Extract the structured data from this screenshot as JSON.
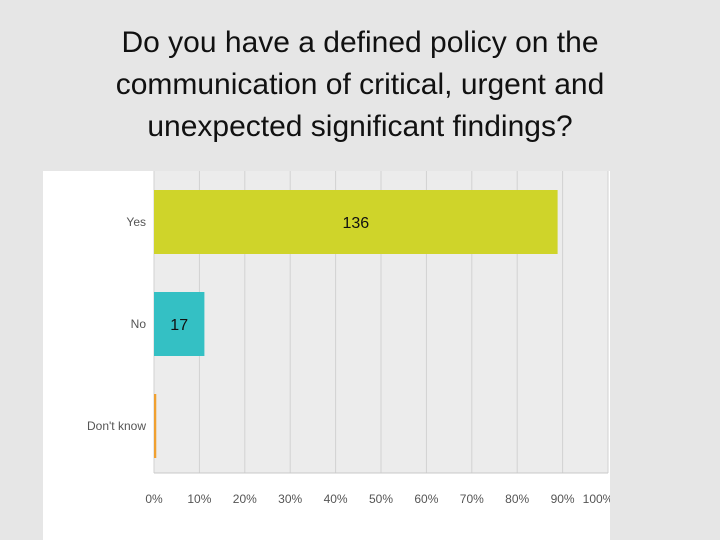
{
  "slide": {
    "title_lines": [
      "Do you have a defined policy on the",
      "communication of critical, urgent and",
      "unexpected significant findings?"
    ]
  },
  "chart_data": {
    "type": "bar",
    "orientation": "horizontal",
    "categories": [
      "Yes",
      "No",
      "Don't know"
    ],
    "values_percent": [
      88.9,
      11.1,
      0.5
    ],
    "data_labels": [
      "136",
      "17",
      ""
    ],
    "xlim": [
      0,
      100
    ],
    "xticks": [
      "0%",
      "10%",
      "20%",
      "30%",
      "40%",
      "50%",
      "60%",
      "70%",
      "80%",
      "90%",
      "100%"
    ],
    "colors": [
      "#cfd42a",
      "#34c0c4",
      "#f0a030"
    ],
    "grid": true,
    "plot_background": "#ececec",
    "legend": "none"
  }
}
